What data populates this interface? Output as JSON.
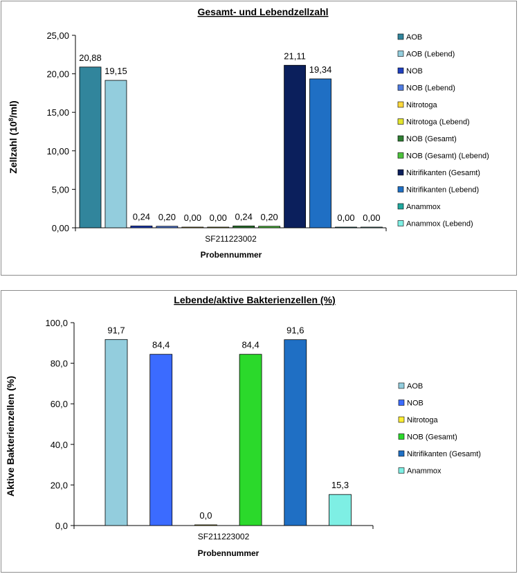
{
  "chart_data": [
    {
      "type": "bar",
      "title": "Gesamt- und Lebendzellzahl",
      "xlabel": "Probennummer",
      "ylabel_base": "Zellzahl (10",
      "ylabel_sup": "8",
      "ylabel_tail": "/ml)",
      "categories": [
        "SF211223002"
      ],
      "ylim": [
        0,
        25
      ],
      "yticks": [
        0,
        5,
        10,
        15,
        20,
        25
      ],
      "ytick_labels": [
        "0,00",
        "5,00",
        "10,00",
        "15,00",
        "20,00",
        "25,00"
      ],
      "grid": false,
      "legend_position": "right",
      "series": [
        {
          "name": "AOB",
          "values": [
            20.88
          ],
          "label": "20,88",
          "color": "#31859C"
        },
        {
          "name": "AOB (Lebend)",
          "values": [
            19.15
          ],
          "label": "19,15",
          "color": "#93CDDD"
        },
        {
          "name": "NOB",
          "values": [
            0.24
          ],
          "label": "0,24",
          "color": "#1F3FBF"
        },
        {
          "name": "NOB (Lebend)",
          "values": [
            0.2
          ],
          "label": "0,20",
          "color": "#4F7BE0"
        },
        {
          "name": "Nitrotoga",
          "values": [
            0.0
          ],
          "label": "0,00",
          "color": "#FFD93D"
        },
        {
          "name": "Nitrotoga (Lebend)",
          "values": [
            0.0
          ],
          "label": "0,00",
          "color": "#E4E62E"
        },
        {
          "name": "NOB (Gesamt)",
          "values": [
            0.24
          ],
          "label": "0,24",
          "color": "#2E7D32"
        },
        {
          "name": "NOB (Gesamt) (Lebend)",
          "values": [
            0.2
          ],
          "label": "0,20",
          "color": "#4CC23C"
        },
        {
          "name": "Nitrifikanten (Gesamt)",
          "values": [
            21.11
          ],
          "label": "21,11",
          "color": "#0B1F5C"
        },
        {
          "name": "Nitrifikanten (Lebend)",
          "values": [
            19.34
          ],
          "label": "19,34",
          "color": "#1F6FC4"
        },
        {
          "name": "Anammox",
          "values": [
            0.0
          ],
          "label": "0,00",
          "color": "#21A99F"
        },
        {
          "name": "Anammox (Lebend)",
          "values": [
            0.0
          ],
          "label": "0,00",
          "color": "#7EEFE4"
        }
      ]
    },
    {
      "type": "bar",
      "title": "Lebende/aktive Bakterienzellen (%)",
      "xlabel": "Probennummer",
      "ylabel": "Aktive Bakterienzellen (%)",
      "categories": [
        "SF211223002"
      ],
      "ylim": [
        0,
        100
      ],
      "yticks": [
        0,
        20,
        40,
        60,
        80,
        100
      ],
      "ytick_labels": [
        "0,0",
        "20,0",
        "40,0",
        "60,0",
        "80,0",
        "100,0"
      ],
      "grid": false,
      "legend_position": "right",
      "series": [
        {
          "name": "AOB",
          "values": [
            91.7
          ],
          "label": "91,7",
          "color": "#93CDDD"
        },
        {
          "name": "NOB",
          "values": [
            84.4
          ],
          "label": "84,4",
          "color": "#3B6BFF"
        },
        {
          "name": "Nitrotoga",
          "values": [
            0.0
          ],
          "label": "0,0",
          "color": "#FFEE33"
        },
        {
          "name": "NOB (Gesamt)",
          "values": [
            84.4
          ],
          "label": "84,4",
          "color": "#2BD92B"
        },
        {
          "name": "Nitrifikanten (Gesamt)",
          "values": [
            91.6
          ],
          "label": "91,6",
          "color": "#1F6FC4"
        },
        {
          "name": "Anammox",
          "values": [
            15.3
          ],
          "label": "15,3",
          "color": "#7EEFE4"
        }
      ]
    }
  ]
}
